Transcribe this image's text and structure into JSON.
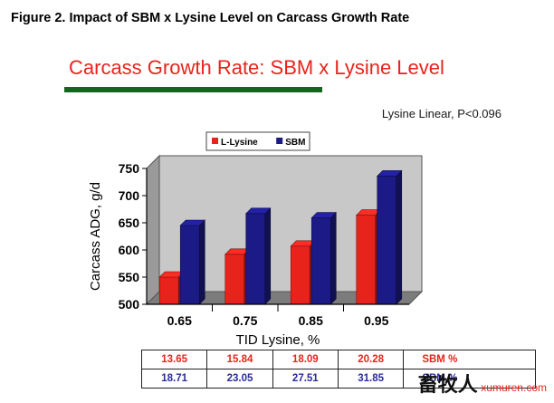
{
  "figure_caption": "Figure 2.  Impact of SBM x Lysine Level on Carcass Growth Rate",
  "slide_title": "Carcass Growth Rate:  SBM x Lysine Level",
  "annotation": "Lysine Linear, P<0.096",
  "colors": {
    "red": "#e8231c",
    "blue": "#1c1a86",
    "rule": "#14661f"
  },
  "chart_data": {
    "type": "bar",
    "title": "",
    "xlabel": "TID Lysine, %",
    "ylabel": "Carcass ADG, g/d",
    "categories": [
      "0.65",
      "0.75",
      "0.85",
      "0.95"
    ],
    "series": [
      {
        "name": "L-Lysine",
        "color": "#e8231c",
        "values": [
          550,
          592,
          607,
          664
        ]
      },
      {
        "name": "SBM",
        "color": "#1c1a86",
        "values": [
          645,
          667,
          659,
          736
        ]
      }
    ],
    "ylim": [
      500,
      750
    ],
    "yticks": [
      500,
      550,
      600,
      650,
      700,
      750
    ],
    "legend": "top-center",
    "grid": false
  },
  "table": {
    "rows": [
      {
        "values": [
          "13.65",
          "15.84",
          "18.09",
          "20.28"
        ],
        "label": "SBM %"
      },
      {
        "values": [
          "18.71",
          "23.05",
          "27.51",
          "31.85"
        ],
        "label": "SBM %"
      }
    ]
  },
  "watermark": {
    "brand": "畜牧人",
    "url": "xumuren.com"
  }
}
